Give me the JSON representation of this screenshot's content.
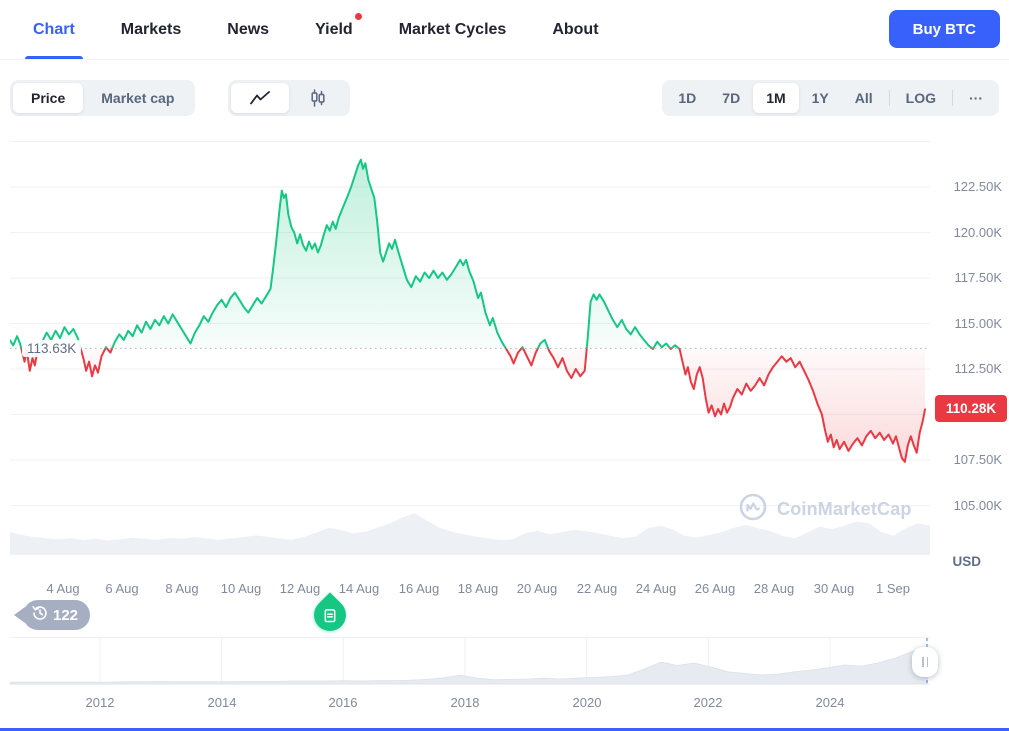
{
  "nav": {
    "items": [
      {
        "label": "Chart",
        "active": true,
        "dot": false
      },
      {
        "label": "Markets",
        "active": false,
        "dot": false
      },
      {
        "label": "News",
        "active": false,
        "dot": false
      },
      {
        "label": "Yield",
        "active": false,
        "dot": true
      },
      {
        "label": "Market Cycles",
        "active": false,
        "dot": false
      },
      {
        "label": "About",
        "active": false,
        "dot": false
      }
    ],
    "buy_button": "Buy BTC"
  },
  "toolbar": {
    "metric_toggle": {
      "options": [
        "Price",
        "Market cap"
      ],
      "selected": "Price"
    },
    "chart_type": {
      "options": [
        "line",
        "candlestick"
      ],
      "selected": "line"
    },
    "range_options": [
      "1D",
      "7D",
      "1M",
      "1Y",
      "All"
    ],
    "selected_range": "1M",
    "log_label": "LOG",
    "more_label": "···"
  },
  "badges": {
    "history_count": "122"
  },
  "watermark": "CoinMarketCap",
  "chart_data": {
    "type": "area",
    "title": "BTC/USD price, 1M range",
    "unit": "USD",
    "baseline": {
      "label": "113.63K",
      "value": 113.63
    },
    "last_price": {
      "label": "110.28K",
      "value": 110.28
    },
    "ylim": [
      102.3,
      125.4
    ],
    "grid_values": [
      125,
      122.5,
      120,
      117.5,
      115,
      112.5,
      110,
      107.5,
      105
    ],
    "y_ticks": [
      {
        "label": "122.50K",
        "value": 122.5
      },
      {
        "label": "120.00K",
        "value": 120.0
      },
      {
        "label": "117.50K",
        "value": 117.5
      },
      {
        "label": "115.00K",
        "value": 115.0
      },
      {
        "label": "112.50K",
        "value": 112.5
      },
      {
        "label": "107.50K",
        "value": 107.5
      },
      {
        "label": "105.00K",
        "value": 105.0
      }
    ],
    "x_ticks": [
      "4 Aug",
      "6 Aug",
      "8 Aug",
      "10 Aug",
      "12 Aug",
      "14 Aug",
      "16 Aug",
      "18 Aug",
      "20 Aug",
      "22 Aug",
      "24 Aug",
      "26 Aug",
      "28 Aug",
      "30 Aug",
      "1 Sep"
    ],
    "colors": {
      "up": "#16c784",
      "down": "#ea3943",
      "grid": "#eff1f5",
      "volume": "#edf0f5"
    },
    "series": [
      [
        2.2,
        114.1
      ],
      [
        2.32,
        113.8
      ],
      [
        2.45,
        114.3
      ],
      [
        2.55,
        113.9
      ],
      [
        2.63,
        113.4
      ],
      [
        2.7,
        112.9
      ],
      [
        2.78,
        113.5
      ],
      [
        2.88,
        112.4
      ],
      [
        2.97,
        113.1
      ],
      [
        3.05,
        112.7
      ],
      [
        3.15,
        113.6
      ],
      [
        3.3,
        114.0
      ],
      [
        3.45,
        114.5
      ],
      [
        3.6,
        114.1
      ],
      [
        3.75,
        114.6
      ],
      [
        3.9,
        114.2
      ],
      [
        4.05,
        114.8
      ],
      [
        4.2,
        114.4
      ],
      [
        4.35,
        114.7
      ],
      [
        4.5,
        114.2
      ],
      [
        4.6,
        113.6
      ],
      [
        4.7,
        113.0
      ],
      [
        4.78,
        112.4
      ],
      [
        4.88,
        112.9
      ],
      [
        4.98,
        112.1
      ],
      [
        5.08,
        112.7
      ],
      [
        5.18,
        112.3
      ],
      [
        5.3,
        113.2
      ],
      [
        5.45,
        113.7
      ],
      [
        5.6,
        113.4
      ],
      [
        5.75,
        114.0
      ],
      [
        5.9,
        114.4
      ],
      [
        6.05,
        114.1
      ],
      [
        6.2,
        114.6
      ],
      [
        6.35,
        114.3
      ],
      [
        6.5,
        114.9
      ],
      [
        6.65,
        114.5
      ],
      [
        6.8,
        115.1
      ],
      [
        6.95,
        114.7
      ],
      [
        7.1,
        115.2
      ],
      [
        7.25,
        114.9
      ],
      [
        7.4,
        115.4
      ],
      [
        7.55,
        115.0
      ],
      [
        7.7,
        115.5
      ],
      [
        7.85,
        115.1
      ],
      [
        8.0,
        114.7
      ],
      [
        8.15,
        114.3
      ],
      [
        8.3,
        113.9
      ],
      [
        8.45,
        114.5
      ],
      [
        8.6,
        114.9
      ],
      [
        8.75,
        115.4
      ],
      [
        8.9,
        115.1
      ],
      [
        9.05,
        115.6
      ],
      [
        9.2,
        116.0
      ],
      [
        9.35,
        116.3
      ],
      [
        9.5,
        115.9
      ],
      [
        9.65,
        116.4
      ],
      [
        9.8,
        116.7
      ],
      [
        9.95,
        116.3
      ],
      [
        10.1,
        115.9
      ],
      [
        10.25,
        115.6
      ],
      [
        10.4,
        116.0
      ],
      [
        10.55,
        116.4
      ],
      [
        10.7,
        116.1
      ],
      [
        10.85,
        116.5
      ],
      [
        11.0,
        116.9
      ],
      [
        11.1,
        118.2
      ],
      [
        11.2,
        119.6
      ],
      [
        11.3,
        121.2
      ],
      [
        11.38,
        122.3
      ],
      [
        11.45,
        121.9
      ],
      [
        11.52,
        122.1
      ],
      [
        11.6,
        121.0
      ],
      [
        11.7,
        120.3
      ],
      [
        11.8,
        120.0
      ],
      [
        11.9,
        119.4
      ],
      [
        12.0,
        119.9
      ],
      [
        12.1,
        119.3
      ],
      [
        12.2,
        119.0
      ],
      [
        12.3,
        119.5
      ],
      [
        12.4,
        119.1
      ],
      [
        12.5,
        119.4
      ],
      [
        12.6,
        118.9
      ],
      [
        12.7,
        119.3
      ],
      [
        12.8,
        119.9
      ],
      [
        12.9,
        120.4
      ],
      [
        13.0,
        120.1
      ],
      [
        13.1,
        120.6
      ],
      [
        13.2,
        120.2
      ],
      [
        13.3,
        120.8
      ],
      [
        13.45,
        121.4
      ],
      [
        13.6,
        122.0
      ],
      [
        13.72,
        122.5
      ],
      [
        13.8,
        122.9
      ],
      [
        13.88,
        123.3
      ],
      [
        13.96,
        123.7
      ],
      [
        14.05,
        124.0
      ],
      [
        14.12,
        123.5
      ],
      [
        14.2,
        123.8
      ],
      [
        14.3,
        122.9
      ],
      [
        14.4,
        122.4
      ],
      [
        14.5,
        121.9
      ],
      [
        14.6,
        120.6
      ],
      [
        14.7,
        118.9
      ],
      [
        14.8,
        118.4
      ],
      [
        14.9,
        118.9
      ],
      [
        15.0,
        119.4
      ],
      [
        15.1,
        119.1
      ],
      [
        15.2,
        119.6
      ],
      [
        15.3,
        119.0
      ],
      [
        15.45,
        118.2
      ],
      [
        15.6,
        117.4
      ],
      [
        15.75,
        117.0
      ],
      [
        15.9,
        117.6
      ],
      [
        16.05,
        117.3
      ],
      [
        16.2,
        117.8
      ],
      [
        16.35,
        117.5
      ],
      [
        16.5,
        117.9
      ],
      [
        16.65,
        117.5
      ],
      [
        16.8,
        117.8
      ],
      [
        16.95,
        117.4
      ],
      [
        17.1,
        117.7
      ],
      [
        17.25,
        118.1
      ],
      [
        17.4,
        118.5
      ],
      [
        17.5,
        118.2
      ],
      [
        17.6,
        118.5
      ],
      [
        17.7,
        117.9
      ],
      [
        17.85,
        117.3
      ],
      [
        18.0,
        116.4
      ],
      [
        18.1,
        116.7
      ],
      [
        18.25,
        115.6
      ],
      [
        18.4,
        114.9
      ],
      [
        18.5,
        115.3
      ],
      [
        18.65,
        114.5
      ],
      [
        18.8,
        114.0
      ],
      [
        18.95,
        113.6
      ],
      [
        19.1,
        113.2
      ],
      [
        19.2,
        112.8
      ],
      [
        19.35,
        113.4
      ],
      [
        19.5,
        113.7
      ],
      [
        19.65,
        113.2
      ],
      [
        19.8,
        112.7
      ],
      [
        19.95,
        113.4
      ],
      [
        20.1,
        113.9
      ],
      [
        20.25,
        114.1
      ],
      [
        20.4,
        113.5
      ],
      [
        20.55,
        113.1
      ],
      [
        20.7,
        112.6
      ],
      [
        20.85,
        113.1
      ],
      [
        21.0,
        112.4
      ],
      [
        21.15,
        112.0
      ],
      [
        21.3,
        112.5
      ],
      [
        21.45,
        112.1
      ],
      [
        21.6,
        112.4
      ],
      [
        21.7,
        114.2
      ],
      [
        21.8,
        116.2
      ],
      [
        21.9,
        116.6
      ],
      [
        22.0,
        116.3
      ],
      [
        22.1,
        116.6
      ],
      [
        22.25,
        116.2
      ],
      [
        22.4,
        115.7
      ],
      [
        22.55,
        115.2
      ],
      [
        22.7,
        114.8
      ],
      [
        22.85,
        115.2
      ],
      [
        23.0,
        114.7
      ],
      [
        23.15,
        114.4
      ],
      [
        23.3,
        114.8
      ],
      [
        23.45,
        114.4
      ],
      [
        23.6,
        114.1
      ],
      [
        23.75,
        113.8
      ],
      [
        23.9,
        113.6
      ],
      [
        24.05,
        114.0
      ],
      [
        24.2,
        113.7
      ],
      [
        24.35,
        113.9
      ],
      [
        24.5,
        113.6
      ],
      [
        24.65,
        113.8
      ],
      [
        24.8,
        113.6
      ],
      [
        24.9,
        112.9
      ],
      [
        25.0,
        112.2
      ],
      [
        25.08,
        112.6
      ],
      [
        25.18,
        111.8
      ],
      [
        25.28,
        111.4
      ],
      [
        25.38,
        112.2
      ],
      [
        25.48,
        112.6
      ],
      [
        25.58,
        112.0
      ],
      [
        25.68,
        110.9
      ],
      [
        25.78,
        110.1
      ],
      [
        25.88,
        110.5
      ],
      [
        26.0,
        109.9
      ],
      [
        26.1,
        110.3
      ],
      [
        26.2,
        110.0
      ],
      [
        26.3,
        110.6
      ],
      [
        26.4,
        110.1
      ],
      [
        26.5,
        110.4
      ],
      [
        26.6,
        110.9
      ],
      [
        26.75,
        111.4
      ],
      [
        26.9,
        111.1
      ],
      [
        27.05,
        111.7
      ],
      [
        27.2,
        111.3
      ],
      [
        27.35,
        111.6
      ],
      [
        27.5,
        112.0
      ],
      [
        27.65,
        111.6
      ],
      [
        27.8,
        112.2
      ],
      [
        27.95,
        112.6
      ],
      [
        28.1,
        112.9
      ],
      [
        28.25,
        113.2
      ],
      [
        28.4,
        112.9
      ],
      [
        28.55,
        113.1
      ],
      [
        28.7,
        112.6
      ],
      [
        28.85,
        112.9
      ],
      [
        29.0,
        112.4
      ],
      [
        29.15,
        111.9
      ],
      [
        29.3,
        111.3
      ],
      [
        29.45,
        110.6
      ],
      [
        29.6,
        110.0
      ],
      [
        29.7,
        109.2
      ],
      [
        29.8,
        108.5
      ],
      [
        29.9,
        108.9
      ],
      [
        30.0,
        108.2
      ],
      [
        30.1,
        108.6
      ],
      [
        30.2,
        108.1
      ],
      [
        30.35,
        108.5
      ],
      [
        30.5,
        108.0
      ],
      [
        30.65,
        108.4
      ],
      [
        30.8,
        108.7
      ],
      [
        30.95,
        108.3
      ],
      [
        31.1,
        108.8
      ],
      [
        31.25,
        109.1
      ],
      [
        31.4,
        108.7
      ],
      [
        31.55,
        109.0
      ],
      [
        31.7,
        108.6
      ],
      [
        31.85,
        108.9
      ],
      [
        32.0,
        108.4
      ],
      [
        32.1,
        108.8
      ],
      [
        32.2,
        108.2
      ],
      [
        32.3,
        107.6
      ],
      [
        32.4,
        107.4
      ],
      [
        32.5,
        108.3
      ],
      [
        32.6,
        108.8
      ],
      [
        32.7,
        108.3
      ],
      [
        32.8,
        107.9
      ],
      [
        32.9,
        109.0
      ],
      [
        33.0,
        109.6
      ],
      [
        33.08,
        110.28
      ]
    ],
    "volume": [
      0.45,
      0.38,
      0.33,
      0.3,
      0.28,
      0.3,
      0.26,
      0.29,
      0.25,
      0.28,
      0.32,
      0.29,
      0.27,
      0.31,
      0.29,
      0.33,
      0.3,
      0.27,
      0.3,
      0.33,
      0.37,
      0.34,
      0.3,
      0.27,
      0.34,
      0.44,
      0.55,
      0.5,
      0.42,
      0.46,
      0.56,
      0.66,
      0.8,
      0.9,
      0.72,
      0.56,
      0.46,
      0.4,
      0.34,
      0.3,
      0.26,
      0.28,
      0.42,
      0.48,
      0.4,
      0.45,
      0.5,
      0.47,
      0.42,
      0.36,
      0.3,
      0.34,
      0.54,
      0.6,
      0.52,
      0.36,
      0.32,
      0.38,
      0.45,
      0.55,
      0.62,
      0.54,
      0.47,
      0.36,
      0.3,
      0.44,
      0.58,
      0.52,
      0.6,
      0.7,
      0.66,
      0.46,
      0.36,
      0.54,
      0.66,
      0.6
    ]
  },
  "minimap": {
    "years": [
      "2012",
      "2014",
      "2016",
      "2018",
      "2020",
      "2022",
      "2024"
    ],
    "sparkline": [
      0.02,
      0.02,
      0.02,
      0.02,
      0.02,
      0.02,
      0.02,
      0.03,
      0.03,
      0.04,
      0.03,
      0.03,
      0.03,
      0.03,
      0.04,
      0.04,
      0.04,
      0.05,
      0.05,
      0.05,
      0.06,
      0.05,
      0.06,
      0.06,
      0.07,
      0.09,
      0.13,
      0.2,
      0.12,
      0.08,
      0.09,
      0.1,
      0.12,
      0.1,
      0.12,
      0.14,
      0.16,
      0.2,
      0.35,
      0.52,
      0.44,
      0.5,
      0.4,
      0.28,
      0.24,
      0.2,
      0.22,
      0.28,
      0.32,
      0.38,
      0.45,
      0.42,
      0.5,
      0.62,
      0.78,
      0.88
    ]
  }
}
